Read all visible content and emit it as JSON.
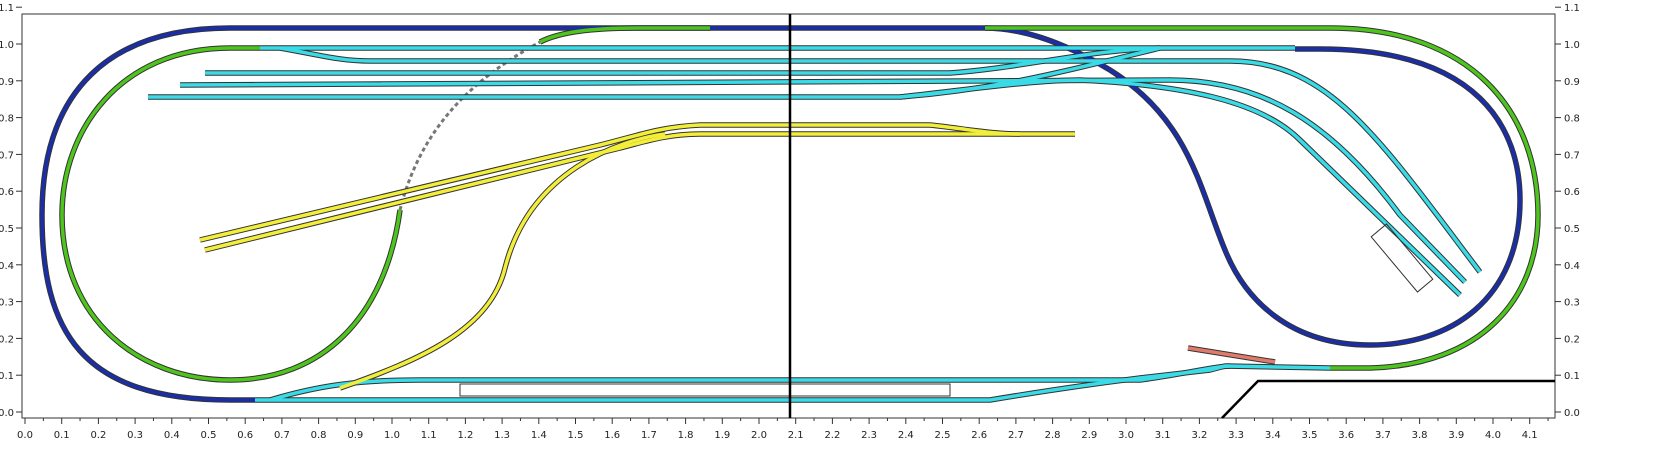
{
  "x_axis_labels": [
    "0.0",
    "0.1",
    "0.2",
    "0.3",
    "0.4",
    "0.5",
    "0.6",
    "0.7",
    "0.8",
    "0.9",
    "1.0",
    "1.1",
    "1.2",
    "1.3",
    "1.4",
    "1.5",
    "1.6",
    "1.7",
    "1.8",
    "1.9",
    "2.0",
    "2.1",
    "2.2",
    "2.3",
    "2.4",
    "2.5",
    "2.6",
    "2.7",
    "2.8",
    "2.9",
    "3.0",
    "3.1",
    "3.2",
    "3.3",
    "3.4",
    "3.5",
    "3.6",
    "3.7",
    "3.8",
    "3.9",
    "4.0",
    "4.1"
  ],
  "y_axis_labels": [
    "0.0",
    "0.1",
    "0.2",
    "0.3",
    "0.4",
    "0.5",
    "0.6",
    "0.7",
    "0.8",
    "0.9",
    "1.0",
    "1.1"
  ]
}
